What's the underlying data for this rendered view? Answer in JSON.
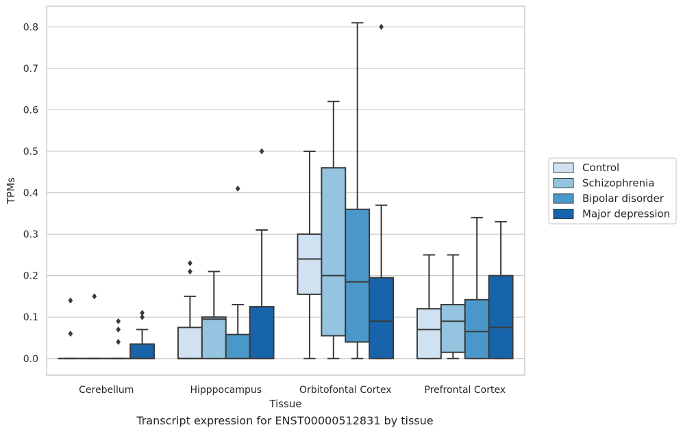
{
  "caption": "Transcript expression for ENST00000512831 by tissue",
  "chart_data": {
    "type": "boxplot",
    "xlabel": "Tissue",
    "ylabel": "TPMs",
    "ylim": [
      -0.04,
      0.85
    ],
    "yticks": [
      0.0,
      0.1,
      0.2,
      0.3,
      0.4,
      0.5,
      0.6,
      0.7,
      0.8
    ],
    "ytick_labels": [
      "0.0",
      "0.1",
      "0.2",
      "0.3",
      "0.4",
      "0.5",
      "0.6",
      "0.7",
      "0.8"
    ],
    "grid": "horizontal",
    "legend_position": "right",
    "categories": [
      "Cerebellum",
      "Hipppocampus",
      "Orbitofontal Cortex",
      "Prefrontal Cortex"
    ],
    "series": [
      {
        "name": "Control",
        "color": "#d0e1f2",
        "boxes": [
          {
            "q1": 0,
            "median": 0,
            "q3": 0,
            "whisker_low": 0,
            "whisker_high": 0,
            "outliers": [
              0.14,
              0.06
            ]
          },
          {
            "q1": 0,
            "median": 0,
            "q3": 0.075,
            "whisker_low": 0,
            "whisker_high": 0.15,
            "outliers": [
              0.23,
              0.21
            ]
          },
          {
            "q1": 0.155,
            "median": 0.24,
            "q3": 0.3,
            "whisker_low": 0,
            "whisker_high": 0.5,
            "outliers": []
          },
          {
            "q1": 0,
            "median": 0.07,
            "q3": 0.12,
            "whisker_low": 0,
            "whisker_high": 0.25,
            "outliers": []
          }
        ]
      },
      {
        "name": "Schizophrenia",
        "color": "#94c4df",
        "boxes": [
          {
            "q1": 0,
            "median": 0,
            "q3": 0,
            "whisker_low": 0,
            "whisker_high": 0,
            "outliers": [
              0.15
            ]
          },
          {
            "q1": 0,
            "median": 0.095,
            "q3": 0.1,
            "whisker_low": 0,
            "whisker_high": 0.21,
            "outliers": []
          },
          {
            "q1": 0.055,
            "median": 0.2,
            "q3": 0.46,
            "whisker_low": 0,
            "whisker_high": 0.62,
            "outliers": []
          },
          {
            "q1": 0.015,
            "median": 0.09,
            "q3": 0.13,
            "whisker_low": 0,
            "whisker_high": 0.25,
            "outliers": []
          }
        ]
      },
      {
        "name": "Bipolar disorder",
        "color": "#4a98c9",
        "boxes": [
          {
            "q1": 0,
            "median": 0,
            "q3": 0,
            "whisker_low": 0,
            "whisker_high": 0,
            "outliers": [
              0.09,
              0.07,
              0.04
            ]
          },
          {
            "q1": 0,
            "median": 0,
            "q3": 0.058,
            "whisker_low": 0,
            "whisker_high": 0.13,
            "outliers": [
              0.41
            ]
          },
          {
            "q1": 0.04,
            "median": 0.185,
            "q3": 0.36,
            "whisker_low": 0,
            "whisker_high": 0.81,
            "outliers": []
          },
          {
            "q1": 0,
            "median": 0.065,
            "q3": 0.142,
            "whisker_low": 0,
            "whisker_high": 0.34,
            "outliers": []
          }
        ]
      },
      {
        "name": "Major depression",
        "color": "#1764ab",
        "boxes": [
          {
            "q1": 0,
            "median": 0,
            "q3": 0.035,
            "whisker_low": 0,
            "whisker_high": 0.07,
            "outliers": [
              0.11,
              0.1
            ]
          },
          {
            "q1": 0,
            "median": 0,
            "q3": 0.125,
            "whisker_low": 0,
            "whisker_high": 0.31,
            "outliers": [
              0.5
            ]
          },
          {
            "q1": 0,
            "median": 0.09,
            "q3": 0.195,
            "whisker_low": 0,
            "whisker_high": 0.37,
            "outliers": [
              0.8
            ]
          },
          {
            "q1": 0,
            "median": 0.075,
            "q3": 0.2,
            "whisker_low": 0,
            "whisker_high": 0.33,
            "outliers": []
          }
        ]
      }
    ]
  }
}
